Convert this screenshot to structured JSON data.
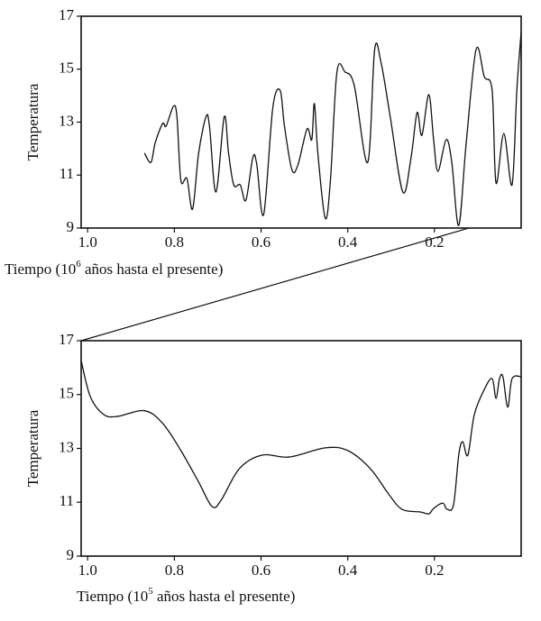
{
  "chart_data": [
    {
      "type": "line",
      "ylabel": "Temperatura",
      "xlabel": [
        "Tiempo (10",
        "6",
        " años hasta el presente)"
      ],
      "xlim": [
        1.015,
        0
      ],
      "ylim": [
        9,
        17
      ],
      "xticks": [
        {
          "value": 1.0,
          "label": "1.0"
        },
        0.8,
        0.6,
        0.4,
        0.2
      ],
      "yticks": [
        9,
        11,
        13,
        15,
        17
      ],
      "x": [
        0.869,
        0.854,
        0.844,
        0.827,
        0.819,
        0.802,
        0.794,
        0.785,
        0.771,
        0.758,
        0.744,
        0.727,
        0.719,
        0.704,
        0.685,
        0.675,
        0.663,
        0.648,
        0.635,
        0.619,
        0.61,
        0.594,
        0.573,
        0.556,
        0.546,
        0.529,
        0.515,
        0.494,
        0.483,
        0.477,
        0.469,
        0.452,
        0.44,
        0.425,
        0.406,
        0.385,
        0.354,
        0.338,
        0.323,
        0.302,
        0.273,
        0.254,
        0.24,
        0.229,
        0.213,
        0.202,
        0.192,
        0.173,
        0.16,
        0.144,
        0.127,
        0.104,
        0.085,
        0.067,
        0.058,
        0.04,
        0.021,
        0.01,
        0.0
      ],
      "values": [
        11.83,
        11.48,
        12.23,
        12.95,
        12.85,
        13.6,
        13.2,
        10.8,
        10.87,
        9.71,
        11.83,
        13.2,
        12.85,
        10.36,
        13.2,
        11.83,
        10.63,
        10.63,
        10.05,
        11.66,
        11.42,
        9.51,
        13.53,
        14.2,
        12.85,
        11.21,
        11.38,
        12.74,
        12.34,
        13.7,
        11.83,
        9.37,
        10.8,
        14.89,
        14.89,
        14.38,
        11.48,
        15.74,
        15.23,
        13.2,
        10.36,
        11.66,
        13.36,
        12.5,
        14.04,
        12.34,
        11.14,
        12.34,
        11.48,
        9.1,
        12.17,
        15.74,
        14.72,
        14.2,
        10.7,
        12.57,
        10.63,
        14.2,
        16.4
      ],
      "color": "#111111"
    },
    {
      "type": "line",
      "ylabel": "Temperatura",
      "xlabel": [
        "Tiempo (10",
        "5",
        " años hasta el presente)"
      ],
      "xlim": [
        1.015,
        0
      ],
      "ylim": [
        9,
        17
      ],
      "xticks": [
        {
          "value": 1.0,
          "label": "1.0"
        },
        0.8,
        0.6,
        0.4,
        0.2
      ],
      "yticks": [
        9,
        11,
        13,
        15,
        17
      ],
      "x": [
        1.015,
        0.994,
        0.963,
        0.931,
        0.869,
        0.827,
        0.785,
        0.744,
        0.713,
        0.692,
        0.65,
        0.598,
        0.535,
        0.452,
        0.4,
        0.348,
        0.306,
        0.275,
        0.233,
        0.213,
        0.202,
        0.181,
        0.171,
        0.156,
        0.144,
        0.135,
        0.123,
        0.108,
        0.085,
        0.067,
        0.058,
        0.05,
        0.042,
        0.031,
        0.021,
        0.0
      ],
      "values": [
        16.26,
        14.93,
        14.26,
        14.19,
        14.4,
        13.93,
        12.92,
        11.75,
        10.84,
        11.08,
        12.25,
        12.75,
        12.68,
        13.02,
        12.92,
        12.25,
        11.31,
        10.74,
        10.64,
        10.57,
        10.77,
        10.97,
        10.74,
        10.91,
        12.75,
        13.25,
        12.75,
        14.26,
        15.19,
        15.59,
        14.86,
        15.59,
        15.66,
        14.53,
        15.59,
        15.66
      ],
      "color": "#111111"
    }
  ]
}
